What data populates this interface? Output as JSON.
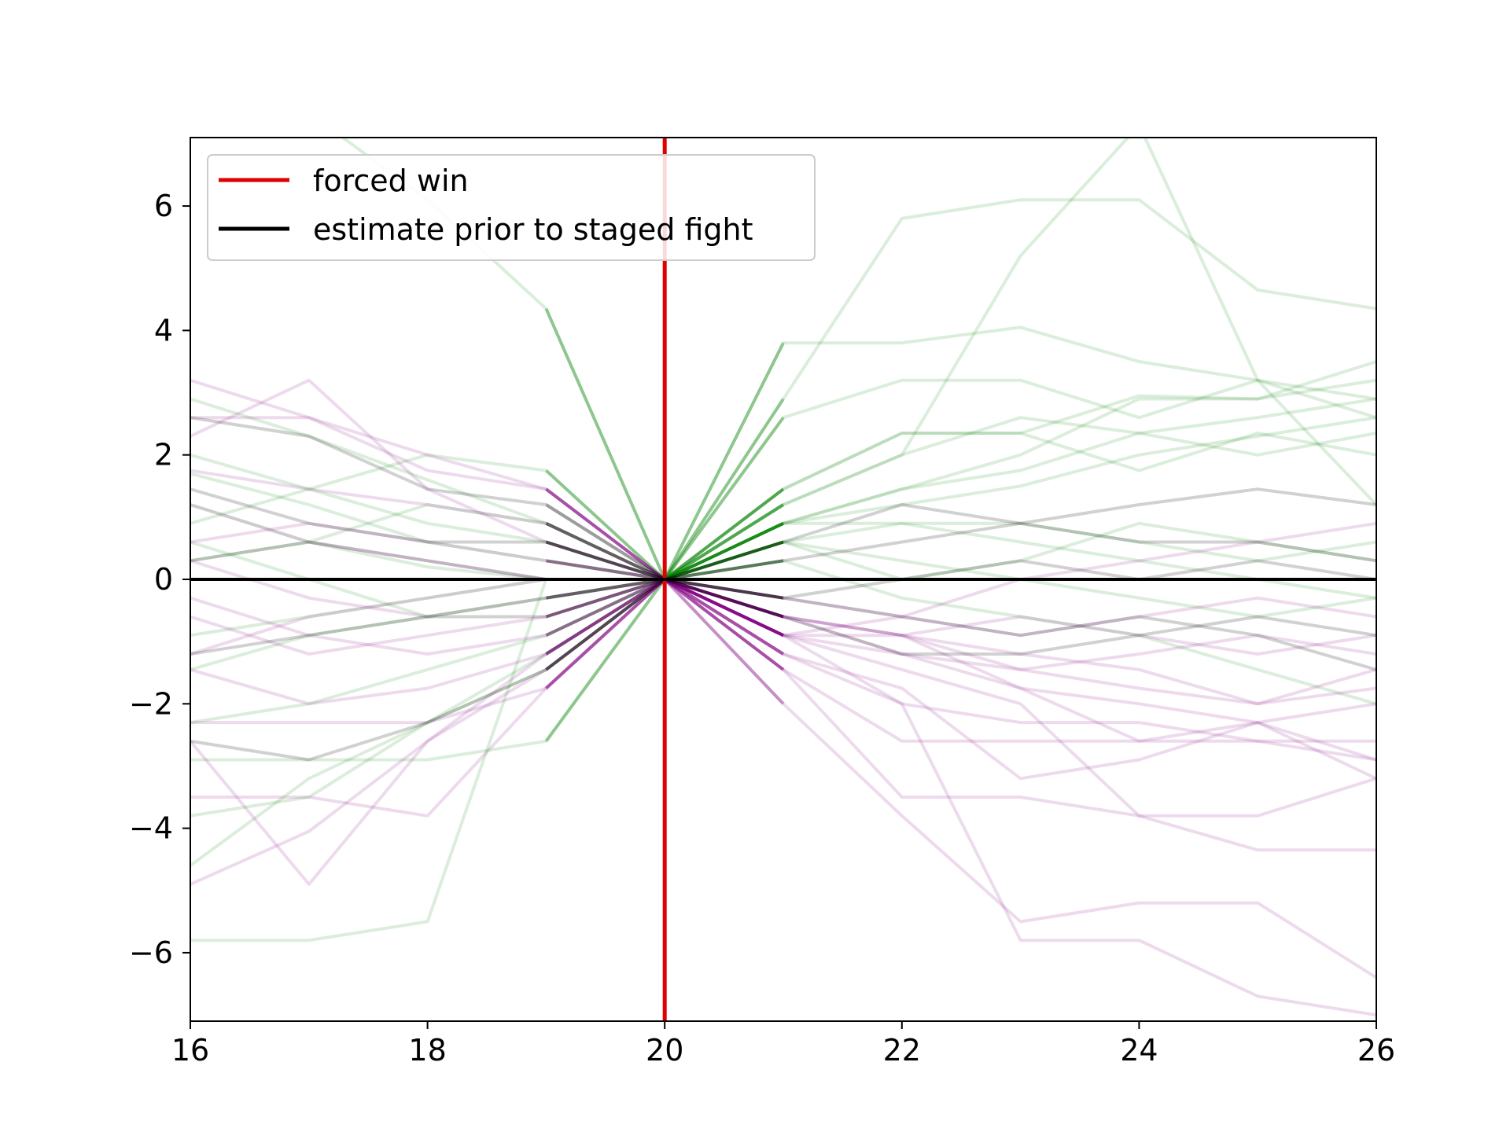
{
  "chart_data": {
    "type": "line",
    "title": "",
    "xlabel": "",
    "ylabel": "",
    "xlim": [
      16,
      26
    ],
    "ylim": [
      -7.1,
      7.1
    ],
    "x_ticks": [
      16,
      18,
      20,
      22,
      24,
      26
    ],
    "y_ticks": [
      -6,
      -4,
      -2,
      0,
      2,
      4,
      6
    ],
    "x_tick_labels": [
      "16",
      "18",
      "20",
      "22",
      "24",
      "26"
    ],
    "y_tick_labels": [
      "−6",
      "−4",
      "−2",
      "0",
      "2",
      "4",
      "6"
    ],
    "grid": false,
    "legend_position": "top-left",
    "legend": [
      {
        "label": "forced win",
        "color": "#e00000"
      },
      {
        "label": "estimate prior to staged fight",
        "color": "#000000"
      }
    ],
    "reference_lines": [
      {
        "orientation": "vertical",
        "x": 20,
        "color": "#e00000",
        "label": "forced win"
      },
      {
        "orientation": "horizontal",
        "y": 0,
        "color": "#000000",
        "label": "estimate prior to staged fight"
      }
    ],
    "x": [
      16,
      17,
      18,
      19,
      20,
      21,
      22,
      23,
      24,
      25,
      26
    ],
    "trajectory_colors": {
      "winner": "#008000",
      "loser": "#800080"
    },
    "trajectories": [
      {
        "group": "winner",
        "y": [
          2.9,
          2.3,
          1.6,
          0.9,
          0,
          1.45,
          2.35,
          2.35,
          2.95,
          2.9,
          3.5
        ]
      },
      {
        "group": "winner",
        "y": [
          1.7,
          1.2,
          0.6,
          0.3,
          0,
          0.9,
          1.2,
          1.5,
          2.0,
          2.3,
          2.6
        ]
      },
      {
        "group": "winner",
        "y": [
          1.2,
          0.6,
          0.2,
          0.0,
          0,
          0.6,
          0.9,
          0.9,
          0.6,
          0.3,
          0.6
        ]
      },
      {
        "group": "winner",
        "y": [
          0.6,
          0.0,
          -0.6,
          -0.3,
          0,
          0.9,
          1.45,
          1.75,
          2.35,
          2.6,
          2.9
        ]
      },
      {
        "group": "winner",
        "y": [
          -0.9,
          -0.6,
          -0.3,
          0.0,
          0,
          2.9,
          5.8,
          6.1,
          6.1,
          4.65,
          4.35
        ]
      },
      {
        "group": "winner",
        "y": [
          -2.3,
          -2.0,
          -1.45,
          -0.9,
          0,
          0.6,
          0.3,
          0.0,
          -0.3,
          -0.6,
          -0.3
        ]
      },
      {
        "group": "winner",
        "y": [
          -3.8,
          -3.5,
          -2.3,
          -1.45,
          0,
          1.2,
          2.0,
          2.6,
          2.35,
          2.0,
          2.35
        ]
      },
      {
        "group": "winner",
        "y": [
          -5.8,
          -5.8,
          -5.5,
          0.0,
          0,
          3.8,
          3.8,
          4.05,
          3.5,
          3.2,
          2.9
        ]
      },
      {
        "group": "winner",
        "y": [
          -4.6,
          -3.2,
          -2.3,
          -1.2,
          0,
          2.6,
          3.2,
          3.2,
          2.6,
          3.2,
          2.6
        ]
      },
      {
        "group": "winner",
        "y": [
          -2.9,
          -2.9,
          -2.9,
          -2.6,
          0,
          0.9,
          1.45,
          2.0,
          2.9,
          2.9,
          3.2
        ]
      },
      {
        "group": "winner",
        "y": [
          8.5,
          7.5,
          6.1,
          4.35,
          0,
          1.2,
          2.0,
          5.2,
          7.3,
          3.2,
          1.2
        ]
      },
      {
        "group": "winner",
        "y": [
          0.9,
          1.45,
          0.9,
          0.6,
          0,
          0.3,
          -0.3,
          -0.6,
          -0.9,
          -1.45,
          -2.0
        ]
      },
      {
        "group": "winner",
        "y": [
          2.0,
          1.45,
          2.0,
          1.75,
          0,
          0.6,
          0.0,
          0.3,
          0.9,
          0.6,
          0.3
        ]
      },
      {
        "group": "winner",
        "y": [
          -1.45,
          -0.9,
          -0.6,
          -0.3,
          0,
          1.45,
          2.35,
          2.35,
          1.75,
          2.35,
          2.0
        ]
      },
      {
        "group": "winner",
        "y": [
          0.3,
          0.6,
          1.2,
          0.9,
          0,
          0.9,
          0.9,
          0.6,
          0.3,
          0.0,
          -0.3
        ]
      },
      {
        "group": "loser",
        "y": [
          2.6,
          2.6,
          1.75,
          1.45,
          0,
          -0.9,
          -0.9,
          -1.2,
          -1.45,
          -2.0,
          -1.75
        ]
      },
      {
        "group": "loser",
        "y": [
          1.75,
          1.45,
          1.2,
          0.9,
          0,
          -0.6,
          -0.9,
          -1.75,
          -2.6,
          -2.3,
          -2.9
        ]
      },
      {
        "group": "loser",
        "y": [
          1.2,
          0.6,
          0.3,
          0.0,
          0,
          -1.2,
          -2.0,
          -2.3,
          -2.3,
          -2.6,
          -2.9
        ]
      },
      {
        "group": "loser",
        "y": [
          0.3,
          -0.3,
          -0.6,
          -0.3,
          0,
          -0.9,
          -1.45,
          -2.0,
          -3.8,
          -3.8,
          -3.2
        ]
      },
      {
        "group": "loser",
        "y": [
          -0.6,
          -1.2,
          -0.9,
          -0.6,
          0,
          -1.45,
          -3.5,
          -3.5,
          -3.8,
          -4.35,
          -4.35
        ]
      },
      {
        "group": "loser",
        "y": [
          -1.45,
          -2.0,
          -1.75,
          -1.2,
          0,
          -2.0,
          -3.8,
          -5.5,
          -5.2,
          -5.2,
          -6.4
        ]
      },
      {
        "group": "loser",
        "y": [
          -2.3,
          -2.3,
          -2.3,
          -1.75,
          0,
          -1.45,
          -2.6,
          -2.6,
          -2.6,
          -2.6,
          -2.6
        ]
      },
      {
        "group": "loser",
        "y": [
          -3.5,
          -3.5,
          -3.8,
          -1.75,
          0,
          -0.9,
          -2.0,
          -5.8,
          -5.8,
          -6.7,
          -7.0
        ]
      },
      {
        "group": "loser",
        "y": [
          -4.9,
          -4.05,
          -2.6,
          -1.45,
          0,
          -0.9,
          -1.2,
          -1.75,
          -2.0,
          -2.3,
          -2.0
        ]
      },
      {
        "group": "loser",
        "y": [
          3.2,
          2.6,
          2.0,
          1.45,
          0,
          -0.3,
          -0.6,
          -0.9,
          -0.6,
          -0.3,
          -0.6
        ]
      },
      {
        "group": "loser",
        "y": [
          -2.6,
          -4.9,
          -2.6,
          -1.2,
          0,
          -0.6,
          -0.9,
          -1.45,
          -1.2,
          -0.9,
          -1.2
        ]
      },
      {
        "group": "loser",
        "y": [
          0.6,
          0.9,
          0.6,
          0.3,
          0,
          -0.6,
          -1.2,
          -1.45,
          -1.75,
          -2.0,
          -1.45
        ]
      },
      {
        "group": "loser",
        "y": [
          -1.2,
          -0.6,
          -0.3,
          0.0,
          0,
          -0.9,
          -0.6,
          0.0,
          0.3,
          0.6,
          0.9
        ]
      },
      {
        "group": "loser",
        "y": [
          2.3,
          3.2,
          1.45,
          0.6,
          0,
          -1.2,
          -1.75,
          -3.2,
          -2.9,
          -2.3,
          -3.2
        ]
      },
      {
        "group": "loser",
        "y": [
          -0.3,
          -0.9,
          -1.2,
          -0.9,
          0,
          -0.6,
          -0.9,
          -0.6,
          -0.9,
          -1.2,
          -0.9
        ]
      },
      {
        "group": "estimate",
        "y": [
          1.45,
          0.9,
          0.6,
          0.6,
          0,
          0.3,
          0.6,
          0.9,
          0.6,
          0.6,
          0.3
        ]
      },
      {
        "group": "estimate",
        "y": [
          -1.2,
          -0.9,
          -0.6,
          -0.6,
          0,
          -0.3,
          -0.6,
          -0.9,
          -0.6,
          -0.9,
          -1.45
        ]
      },
      {
        "group": "estimate",
        "y": [
          2.6,
          2.3,
          1.45,
          1.2,
          0,
          0.6,
          1.2,
          0.9,
          1.2,
          1.45,
          1.2
        ]
      },
      {
        "group": "estimate",
        "y": [
          -2.6,
          -2.9,
          -2.3,
          -1.45,
          0,
          -0.6,
          -1.2,
          -1.2,
          -0.9,
          -0.6,
          -0.9
        ]
      },
      {
        "group": "estimate",
        "y": [
          0.3,
          0.6,
          0.3,
          0.0,
          0,
          -0.3,
          0.0,
          0.3,
          0.0,
          0.3,
          0.0
        ]
      }
    ]
  }
}
